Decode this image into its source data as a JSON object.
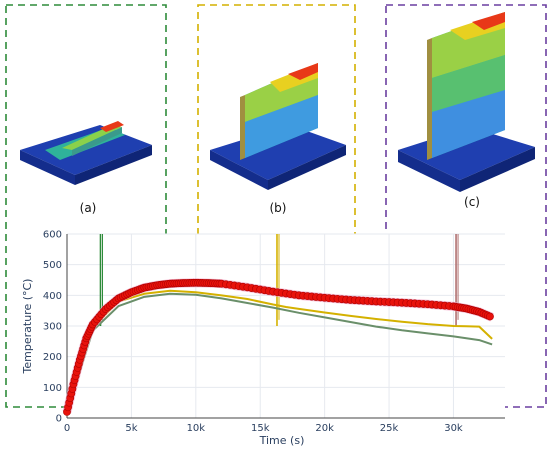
{
  "panels": [
    {
      "label": "(a)",
      "color": "#2e8b3a"
    },
    {
      "label": "(b)",
      "color": "#d4b100"
    },
    {
      "label": "(c)",
      "color": "#6a3fa0"
    }
  ],
  "chart_data": {
    "type": "line",
    "xlabel": "Time (s)",
    "ylabel": "Temperature (°C)",
    "xlim": [
      0,
      34000
    ],
    "ylim": [
      0,
      600
    ],
    "xticks": [
      0,
      5000,
      10000,
      15000,
      20000,
      25000,
      30000
    ],
    "xtick_labels": [
      "0",
      "5k",
      "10k",
      "15k",
      "20k",
      "25k",
      "30k"
    ],
    "yticks": [
      0,
      100,
      200,
      300,
      400,
      500,
      600
    ],
    "ytick_labels": [
      "0",
      "100",
      "200",
      "300",
      "400",
      "500",
      "600"
    ],
    "grid": true,
    "series": [
      {
        "color": "#e8120c",
        "x": [
          0,
          500,
          1000,
          1500,
          2000,
          3000,
          4000,
          5000,
          6000,
          7000,
          8000,
          9000,
          10000,
          11000,
          12000,
          14000,
          16000,
          18000,
          20000,
          22000,
          24000,
          26000,
          28000,
          30000,
          31000,
          32000,
          33000
        ],
        "y": [
          20,
          110,
          190,
          260,
          305,
          355,
          390,
          410,
          425,
          433,
          438,
          440,
          441,
          440,
          438,
          426,
          412,
          400,
          392,
          385,
          380,
          376,
          371,
          364,
          357,
          346,
          328
        ]
      },
      {
        "color": "#d4b100",
        "x": [
          0,
          2000,
          4000,
          6000,
          8000,
          10000,
          12000,
          14000,
          16000,
          17000,
          18000,
          20000,
          22000,
          24000,
          26000,
          28000,
          30000,
          31000,
          32000,
          33000
        ],
        "y": [
          20,
          295,
          380,
          405,
          415,
          410,
          400,
          388,
          370,
          362,
          356,
          344,
          333,
          323,
          314,
          306,
          300,
          299,
          298,
          258
        ]
      },
      {
        "color": "#6a8f6a",
        "x": [
          0,
          2000,
          4000,
          6000,
          8000,
          10000,
          12000,
          14000,
          16000,
          18000,
          20000,
          22000,
          24000,
          26000,
          28000,
          30000,
          31000,
          32000,
          33000
        ],
        "y": [
          20,
          285,
          365,
          395,
          405,
          402,
          390,
          375,
          360,
          343,
          328,
          313,
          298,
          286,
          276,
          266,
          260,
          254,
          240
        ]
      }
    ],
    "spikes": [
      {
        "x": 2600,
        "y": 600,
        "color": "#2e8b3a"
      },
      {
        "x": 16300,
        "y": 600,
        "color": "#d4b100"
      },
      {
        "x": 30200,
        "y": 600,
        "color": "#b07070"
      }
    ],
    "highlight_ranges": [
      {
        "x": [
          -3000,
          7500
        ],
        "color": "#2e8b3a"
      },
      {
        "x": [
          10000,
          22500
        ],
        "color": "#d4b100"
      },
      {
        "x": [
          24800,
          37000
        ],
        "color": "#6a3fa0"
      }
    ]
  }
}
